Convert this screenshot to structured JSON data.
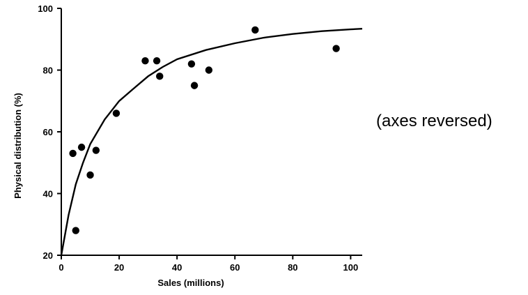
{
  "chart_data": {
    "type": "scatter",
    "xlabel": "Sales (millions)",
    "ylabel": "Physical distribution (%)",
    "xlim": [
      0,
      104
    ],
    "ylim": [
      20,
      100
    ],
    "xticks": [
      0,
      20,
      40,
      60,
      80,
      100
    ],
    "yticks": [
      20,
      40,
      60,
      80,
      100
    ],
    "xtick_labels": [
      "0",
      "20",
      "40",
      "60",
      "80",
      "100"
    ],
    "ytick_labels": [
      "20",
      "40",
      "60",
      "80",
      "100"
    ],
    "grid": false,
    "points": [
      {
        "x": 4,
        "y": 53
      },
      {
        "x": 5,
        "y": 28
      },
      {
        "x": 7,
        "y": 55
      },
      {
        "x": 10,
        "y": 46
      },
      {
        "x": 12,
        "y": 54
      },
      {
        "x": 19,
        "y": 66
      },
      {
        "x": 29,
        "y": 83
      },
      {
        "x": 33,
        "y": 83
      },
      {
        "x": 34,
        "y": 78
      },
      {
        "x": 45,
        "y": 82
      },
      {
        "x": 46,
        "y": 75
      },
      {
        "x": 51,
        "y": 80
      },
      {
        "x": 67,
        "y": 93
      },
      {
        "x": 95,
        "y": 87
      }
    ],
    "fit_curve": [
      {
        "x": 0,
        "y": 20
      },
      {
        "x": 2.5,
        "y": 33
      },
      {
        "x": 5,
        "y": 43
      },
      {
        "x": 7.5,
        "y": 50
      },
      {
        "x": 10,
        "y": 56
      },
      {
        "x": 15,
        "y": 64
      },
      {
        "x": 20,
        "y": 70
      },
      {
        "x": 25,
        "y": 74
      },
      {
        "x": 30,
        "y": 78
      },
      {
        "x": 35,
        "y": 81
      },
      {
        "x": 40,
        "y": 83.5
      },
      {
        "x": 50,
        "y": 86.5
      },
      {
        "x": 60,
        "y": 88.7
      },
      {
        "x": 70,
        "y": 90.5
      },
      {
        "x": 80,
        "y": 91.7
      },
      {
        "x": 90,
        "y": 92.6
      },
      {
        "x": 100,
        "y": 93.2
      },
      {
        "x": 104,
        "y": 93.4
      }
    ],
    "annotations": [
      "(axes reversed)"
    ]
  }
}
